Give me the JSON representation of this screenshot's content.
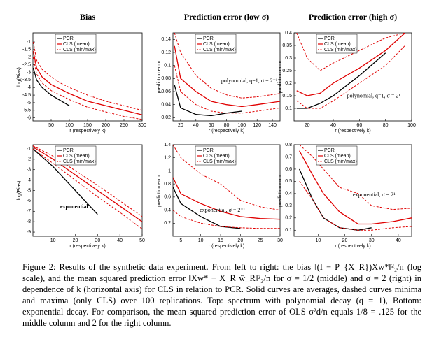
{
  "chart_data": [
    {
      "type": "line",
      "title": "Bias",
      "xlabel": "r (respectively k)",
      "ylabel": "log(Bias)",
      "x": [
        1,
        10,
        25,
        50,
        75,
        100,
        150,
        200,
        250,
        300
      ],
      "xlim": [
        0,
        300
      ],
      "xticks": [
        50,
        100,
        150,
        200,
        250,
        300
      ],
      "ylim": [
        -6.2,
        -0.4
      ],
      "yticks": [
        -1,
        -1.5,
        -2,
        -2.5,
        -3,
        -3.5,
        -4,
        -4.5,
        -5,
        -5.5,
        -6
      ],
      "series": [
        {
          "name": "PCR",
          "color": "#000000",
          "values": [
            -2.7,
            -3.5,
            -4.0,
            -4.5,
            -4.85,
            -5.2,
            null,
            null,
            null,
            null
          ]
        },
        {
          "name": "CLS (mean)",
          "color": "#e00000",
          "values": [
            -1.6,
            -2.7,
            -3.3,
            -3.8,
            -4.1,
            -4.4,
            -4.9,
            -5.2,
            -5.5,
            -5.8
          ]
        },
        {
          "name": "CLS (min/max)",
          "color": "#e00000",
          "dashed": true,
          "lower": [
            -2.0,
            -3.1,
            -3.7,
            -4.2,
            -4.5,
            -4.8,
            -5.3,
            -5.6,
            -5.9,
            -6.1
          ],
          "upper": [
            -1.0,
            -2.2,
            -2.8,
            -3.3,
            -3.7,
            -4.0,
            -4.5,
            -4.9,
            -5.2,
            -5.5
          ]
        }
      ]
    },
    {
      "type": "line",
      "title": "Prediction error (low σ)",
      "xlabel": "r (respectively k)",
      "ylabel": "prediction error",
      "annotation": "polynomial, q=1, σ = 2⁻¹",
      "x": [
        12,
        20,
        40,
        60,
        80,
        100,
        120,
        150
      ],
      "xlim": [
        10,
        150
      ],
      "xticks": [
        20,
        40,
        60,
        80,
        100,
        120,
        140
      ],
      "ylim": [
        0.015,
        0.15
      ],
      "yticks": [
        0.02,
        0.04,
        0.06,
        0.08,
        0.1,
        0.12,
        0.14
      ],
      "series": [
        {
          "name": "PCR",
          "color": "#000000",
          "values": [
            0.07,
            0.035,
            0.025,
            0.023,
            0.027,
            0.03,
            null,
            null
          ]
        },
        {
          "name": "CLS (mean)",
          "color": "#e00000",
          "values": [
            0.13,
            0.08,
            0.06,
            0.045,
            0.04,
            0.037,
            0.04,
            0.045
          ]
        },
        {
          "name": "CLS (min/max)",
          "color": "#e00000",
          "dashed": true,
          "lower": [
            0.1,
            0.06,
            0.04,
            0.03,
            0.027,
            0.027,
            0.03,
            0.035
          ],
          "upper": [
            0.15,
            0.12,
            0.085,
            0.065,
            0.055,
            0.05,
            0.052,
            0.057
          ]
        }
      ]
    },
    {
      "type": "line",
      "title": "Prediction error (high σ)",
      "xlabel": "r (respectively k)",
      "ylabel": "prediction error",
      "annotation": "polynomial, q=1, σ = 2¹",
      "x": [
        12,
        20,
        30,
        40,
        60,
        80,
        95
      ],
      "xlim": [
        10,
        100
      ],
      "xticks": [
        20,
        40,
        60,
        80,
        100
      ],
      "ylim": [
        0.05,
        0.4
      ],
      "yticks": [
        0.1,
        0.15,
        0.2,
        0.25,
        0.3,
        0.35,
        0.4
      ],
      "series": [
        {
          "name": "PCR",
          "color": "#000000",
          "values": [
            0.1,
            0.1,
            0.12,
            0.15,
            0.23,
            0.32,
            null
          ]
        },
        {
          "name": "CLS (mean)",
          "color": "#e00000",
          "values": [
            0.17,
            0.15,
            0.16,
            0.2,
            0.26,
            0.33,
            0.4
          ]
        },
        {
          "name": "CLS (min/max)",
          "color": "#e00000",
          "dashed": true,
          "lower": [
            0.13,
            0.1,
            0.1,
            0.13,
            0.2,
            0.27,
            0.35
          ],
          "upper": [
            0.4,
            0.3,
            0.25,
            0.28,
            0.33,
            0.38,
            0.4
          ]
        }
      ]
    },
    {
      "type": "line",
      "xlabel": "r (respectively k)",
      "ylabel": "log(Bias)",
      "annotation": "exponential",
      "x": [
        1,
        10,
        20,
        30,
        40,
        50
      ],
      "xlim": [
        1,
        50
      ],
      "xticks": [
        10,
        20,
        30,
        40,
        50
      ],
      "ylim": [
        -9.4,
        -0.6
      ],
      "yticks": [
        -1,
        -2,
        -3,
        -4,
        -5,
        -6,
        -7,
        -8,
        -9
      ],
      "series": [
        {
          "name": "PCR",
          "color": "#000000",
          "values": [
            -1.0,
            -2.7,
            -5.0,
            -7.3,
            null,
            null
          ]
        },
        {
          "name": "CLS (mean)",
          "color": "#e00000",
          "values": [
            -0.8,
            -2.0,
            -3.5,
            -5.0,
            -6.5,
            -8.0
          ]
        },
        {
          "name": "CLS (min/max)",
          "color": "#e00000",
          "dashed": true,
          "lower": [
            -1.0,
            -2.4,
            -4.0,
            -5.6,
            -7.1,
            -8.7
          ],
          "upper": [
            -0.7,
            -1.7,
            -3.1,
            -4.5,
            -6.0,
            -7.5
          ]
        }
      ]
    },
    {
      "type": "line",
      "xlabel": "r (respectively k)",
      "ylabel": "prediction error",
      "annotation": "exponential, σ = 2⁻¹",
      "x": [
        3,
        5,
        10,
        15,
        20,
        25,
        30
      ],
      "xlim": [
        3,
        30
      ],
      "xticks": [
        5,
        10,
        15,
        20,
        25,
        30
      ],
      "ylim": [
        0,
        1.4
      ],
      "yticks": [
        0.2,
        0.4,
        0.6,
        0.8,
        1,
        1.2,
        1.4
      ],
      "series": [
        {
          "name": "PCR",
          "color": "#000000",
          "values": [
            0.75,
            0.5,
            0.3,
            0.15,
            0.12,
            null,
            null
          ]
        },
        {
          "name": "CLS (mean)",
          "color": "#e00000",
          "values": [
            0.9,
            0.65,
            0.5,
            0.38,
            0.3,
            0.27,
            0.26
          ]
        },
        {
          "name": "CLS (min/max)",
          "color": "#e00000",
          "dashed": true,
          "lower": [
            0.4,
            0.3,
            0.2,
            0.15,
            0.13,
            0.12,
            0.12
          ],
          "upper": [
            1.4,
            1.2,
            0.95,
            0.8,
            0.55,
            0.45,
            0.4
          ]
        }
      ]
    },
    {
      "type": "line",
      "xlabel": "r (respectively k)",
      "ylabel": "prediction error",
      "annotation": "exponential, σ = 2¹",
      "x": [
        3,
        8,
        12,
        18,
        25,
        30,
        38,
        45
      ],
      "xlim": [
        1,
        45
      ],
      "xticks": [
        10,
        20,
        30,
        40
      ],
      "ylim": [
        0.05,
        0.8
      ],
      "yticks": [
        0.1,
        0.2,
        0.3,
        0.4,
        0.5,
        0.6,
        0.7,
        0.8
      ],
      "series": [
        {
          "name": "PCR",
          "color": "#000000",
          "values": [
            0.6,
            0.35,
            0.2,
            0.12,
            0.1,
            0.12,
            null,
            null
          ]
        },
        {
          "name": "CLS (mean)",
          "color": "#e00000",
          "values": [
            0.75,
            0.55,
            0.4,
            0.25,
            0.15,
            0.15,
            0.17,
            0.2
          ]
        },
        {
          "name": "CLS (min/max)",
          "color": "#e00000",
          "dashed": true,
          "lower": [
            0.5,
            0.35,
            0.2,
            0.12,
            0.1,
            0.1,
            0.12,
            0.13
          ],
          "upper": [
            0.8,
            0.7,
            0.6,
            0.45,
            0.4,
            0.3,
            0.27,
            0.28
          ]
        }
      ]
    }
  ],
  "caption": "Figure 2: Results of the synthetic data experiment. From left to right: the bias ‖(I − P_{X_R})Xw*‖²₂/n (log scale), and the mean squared prediction error ‖Xw* − X_R ŵ_R‖²₂/n for σ = 1/2 (middle) and σ = 2 (right) in dependence of k (horizontal axis) for CLS in relation to PCR. Solid curves are averages, dashed curves minima and maxima (only CLS) over 100 replications. Top: spectrum with polynomial decay (q = 1), Bottom: exponential decay. For comparison, the mean squared prediction error of OLS σ²d/n equals 1/8 = .125 for the middle column and 2 for the right column."
}
